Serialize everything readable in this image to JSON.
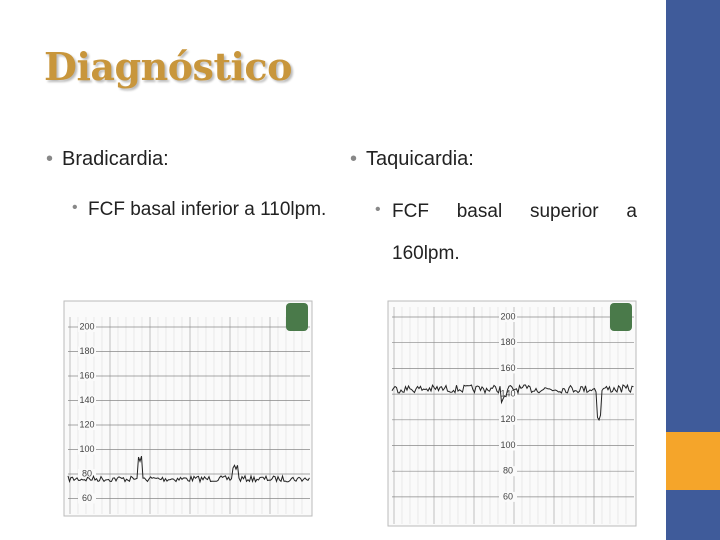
{
  "header": {
    "title": "Diagnóstico"
  },
  "columns": [
    {
      "heading": "Bradicardia:",
      "item": "FCF basal inferior a 110lpm.",
      "trace_labels": [
        "200",
        "180",
        "160",
        "140",
        "120",
        "100",
        "80",
        "60"
      ]
    },
    {
      "heading": "Taquicardia:",
      "item": "FCF basal superior a 160lpm.",
      "trace_labels": [
        "200",
        "180",
        "160",
        "140",
        "120",
        "100",
        "80",
        "60"
      ]
    }
  ]
}
